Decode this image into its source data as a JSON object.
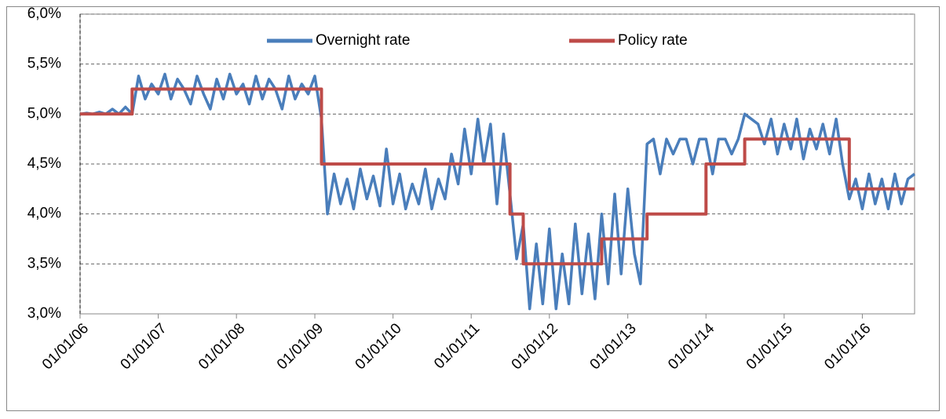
{
  "chart_data": {
    "type": "line",
    "xlim": [
      "2006-01-01",
      "2016-09-01"
    ],
    "xticks": [
      {
        "value": "2006-01-01",
        "label": "01/01/06"
      },
      {
        "value": "2007-01-01",
        "label": "01/01/07"
      },
      {
        "value": "2008-01-01",
        "label": "01/01/08"
      },
      {
        "value": "2009-01-01",
        "label": "01/01/09"
      },
      {
        "value": "2010-01-01",
        "label": "01/01/10"
      },
      {
        "value": "2011-01-01",
        "label": "01/01/11"
      },
      {
        "value": "2012-01-01",
        "label": "01/01/12"
      },
      {
        "value": "2013-01-01",
        "label": "01/01/13"
      },
      {
        "value": "2014-01-01",
        "label": "01/01/14"
      },
      {
        "value": "2015-01-01",
        "label": "01/01/15"
      },
      {
        "value": "2016-01-01",
        "label": "01/01/16"
      }
    ],
    "ylim": [
      3,
      6
    ],
    "yticks": [
      {
        "value": 3,
        "label": "3,0%"
      },
      {
        "value": 3.5,
        "label": "3,5%"
      },
      {
        "value": 4,
        "label": "4,0%"
      },
      {
        "value": 4.5,
        "label": "4,5%"
      },
      {
        "value": 5,
        "label": "5,0%"
      },
      {
        "value": 5.5,
        "label": "5,5%"
      },
      {
        "value": 6,
        "label": "6,0%"
      }
    ],
    "grid": true,
    "legend": "top",
    "series": [
      {
        "name": "Overnight rate",
        "color": "#4a7ebb",
        "x": [
          "2006-01-01",
          "2006-02-01",
          "2006-03-01",
          "2006-04-01",
          "2006-05-01",
          "2006-06-01",
          "2006-07-01",
          "2006-08-01",
          "2006-09-01",
          "2006-10-01",
          "2006-11-01",
          "2006-12-01",
          "2007-01-01",
          "2007-02-01",
          "2007-03-01",
          "2007-04-01",
          "2007-05-01",
          "2007-06-01",
          "2007-07-01",
          "2007-08-01",
          "2007-09-01",
          "2007-10-01",
          "2007-11-01",
          "2007-12-01",
          "2008-01-01",
          "2008-02-01",
          "2008-03-01",
          "2008-04-01",
          "2008-05-01",
          "2008-06-01",
          "2008-07-01",
          "2008-08-01",
          "2008-09-01",
          "2008-10-01",
          "2008-11-01",
          "2008-12-01",
          "2009-01-01",
          "2009-02-01",
          "2009-03-01",
          "2009-04-01",
          "2009-05-01",
          "2009-06-01",
          "2009-07-01",
          "2009-08-01",
          "2009-09-01",
          "2009-10-01",
          "2009-11-01",
          "2009-12-01",
          "2010-01-01",
          "2010-02-01",
          "2010-03-01",
          "2010-04-01",
          "2010-05-01",
          "2010-06-01",
          "2010-07-01",
          "2010-08-01",
          "2010-09-01",
          "2010-10-01",
          "2010-11-01",
          "2010-12-01",
          "2011-01-01",
          "2011-02-01",
          "2011-03-01",
          "2011-04-01",
          "2011-05-01",
          "2011-06-01",
          "2011-07-01",
          "2011-08-01",
          "2011-09-01",
          "2011-10-01",
          "2011-11-01",
          "2011-12-01",
          "2012-01-01",
          "2012-02-01",
          "2012-03-01",
          "2012-04-01",
          "2012-05-01",
          "2012-06-01",
          "2012-07-01",
          "2012-08-01",
          "2012-09-01",
          "2012-10-01",
          "2012-11-01",
          "2012-12-01",
          "2013-01-01",
          "2013-02-01",
          "2013-03-01",
          "2013-04-01",
          "2013-05-01",
          "2013-06-01",
          "2013-07-01",
          "2013-08-01",
          "2013-09-01",
          "2013-10-01",
          "2013-11-01",
          "2013-12-01",
          "2014-01-01",
          "2014-02-01",
          "2014-03-01",
          "2014-04-01",
          "2014-05-01",
          "2014-06-01",
          "2014-07-01",
          "2014-08-01",
          "2014-09-01",
          "2014-10-01",
          "2014-11-01",
          "2014-12-01",
          "2015-01-01",
          "2015-02-01",
          "2015-03-01",
          "2015-04-01",
          "2015-05-01",
          "2015-06-01",
          "2015-07-01",
          "2015-08-01",
          "2015-09-01",
          "2015-10-01",
          "2015-11-01",
          "2015-12-01",
          "2016-01-01",
          "2016-02-01",
          "2016-03-01",
          "2016-04-01",
          "2016-05-01",
          "2016-06-01",
          "2016-07-01",
          "2016-08-01",
          "2016-09-01"
        ],
        "values": [
          5.0,
          5.01,
          5.0,
          5.02,
          5.0,
          5.05,
          5.0,
          5.07,
          5.0,
          5.38,
          5.15,
          5.3,
          5.2,
          5.4,
          5.15,
          5.35,
          5.25,
          5.1,
          5.38,
          5.2,
          5.05,
          5.35,
          5.15,
          5.4,
          5.2,
          5.3,
          5.1,
          5.38,
          5.15,
          5.35,
          5.25,
          5.05,
          5.38,
          5.15,
          5.3,
          5.2,
          5.38,
          4.95,
          4.0,
          4.4,
          4.1,
          4.35,
          4.05,
          4.45,
          4.15,
          4.38,
          4.08,
          4.65,
          4.1,
          4.4,
          4.05,
          4.3,
          4.1,
          4.45,
          4.05,
          4.35,
          4.15,
          4.6,
          4.3,
          4.85,
          4.4,
          4.95,
          4.5,
          4.9,
          4.1,
          4.8,
          4.2,
          3.55,
          3.9,
          3.05,
          3.7,
          3.1,
          3.85,
          3.05,
          3.6,
          3.1,
          3.9,
          3.2,
          3.8,
          3.15,
          4.0,
          3.3,
          4.2,
          3.4,
          4.25,
          3.6,
          3.3,
          4.7,
          4.75,
          4.4,
          4.75,
          4.6,
          4.75,
          4.75,
          4.5,
          4.75,
          4.75,
          4.4,
          4.75,
          4.75,
          4.6,
          4.75,
          5.0,
          4.95,
          4.9,
          4.7,
          4.95,
          4.6,
          4.9,
          4.65,
          4.95,
          4.55,
          4.85,
          4.65,
          4.9,
          4.6,
          4.95,
          4.5,
          4.15,
          4.35,
          4.05,
          4.4,
          4.1,
          4.35,
          4.05,
          4.4,
          4.1,
          4.35,
          4.4
        ]
      },
      {
        "name": "Policy rate",
        "color": "#be4b48",
        "x": [
          "2006-01-01",
          "2006-09-01",
          "2006-09-01",
          "2009-02-01",
          "2009-02-01",
          "2011-07-01",
          "2011-07-01",
          "2011-09-01",
          "2011-09-01",
          "2012-09-01",
          "2012-09-01",
          "2013-04-01",
          "2013-04-01",
          "2014-01-01",
          "2014-01-01",
          "2014-07-01",
          "2014-07-01",
          "2015-11-01",
          "2015-11-01",
          "2016-09-01"
        ],
        "values": [
          5.0,
          5.0,
          5.25,
          5.25,
          4.5,
          4.5,
          4.0,
          4.0,
          3.5,
          3.5,
          3.75,
          3.75,
          4.0,
          4.0,
          4.5,
          4.5,
          4.75,
          4.75,
          4.25,
          4.25
        ]
      }
    ]
  }
}
